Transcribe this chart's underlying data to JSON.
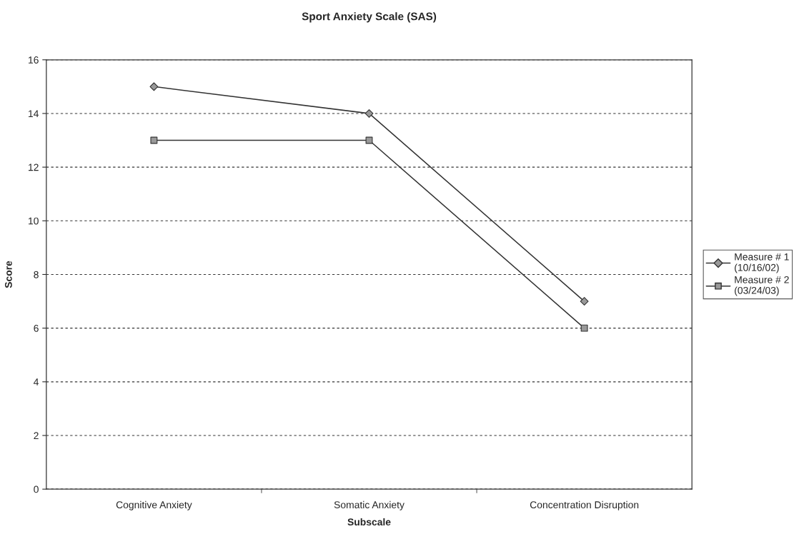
{
  "chart_data": {
    "type": "line",
    "title": "Sport Anxiety Scale (SAS)",
    "xlabel": "Subscale",
    "ylabel": "Score",
    "categories": [
      "Cognitive Anxiety",
      "Somatic Anxiety",
      "Concentration Disruption"
    ],
    "series": [
      {
        "name": "Measure # 1\n(10/16/02)",
        "color": "#333333",
        "marker": "diamond",
        "values": [
          15,
          14,
          7
        ]
      },
      {
        "name": "Measure # 2\n(03/24/03)",
        "color": "#333333",
        "marker": "square",
        "values": [
          13,
          13,
          6
        ]
      }
    ],
    "ylim": [
      0,
      16
    ],
    "yticks": [
      0,
      2,
      4,
      6,
      8,
      10,
      12,
      14,
      16
    ],
    "grid": "y",
    "legend": "right",
    "line_style": "solid"
  }
}
